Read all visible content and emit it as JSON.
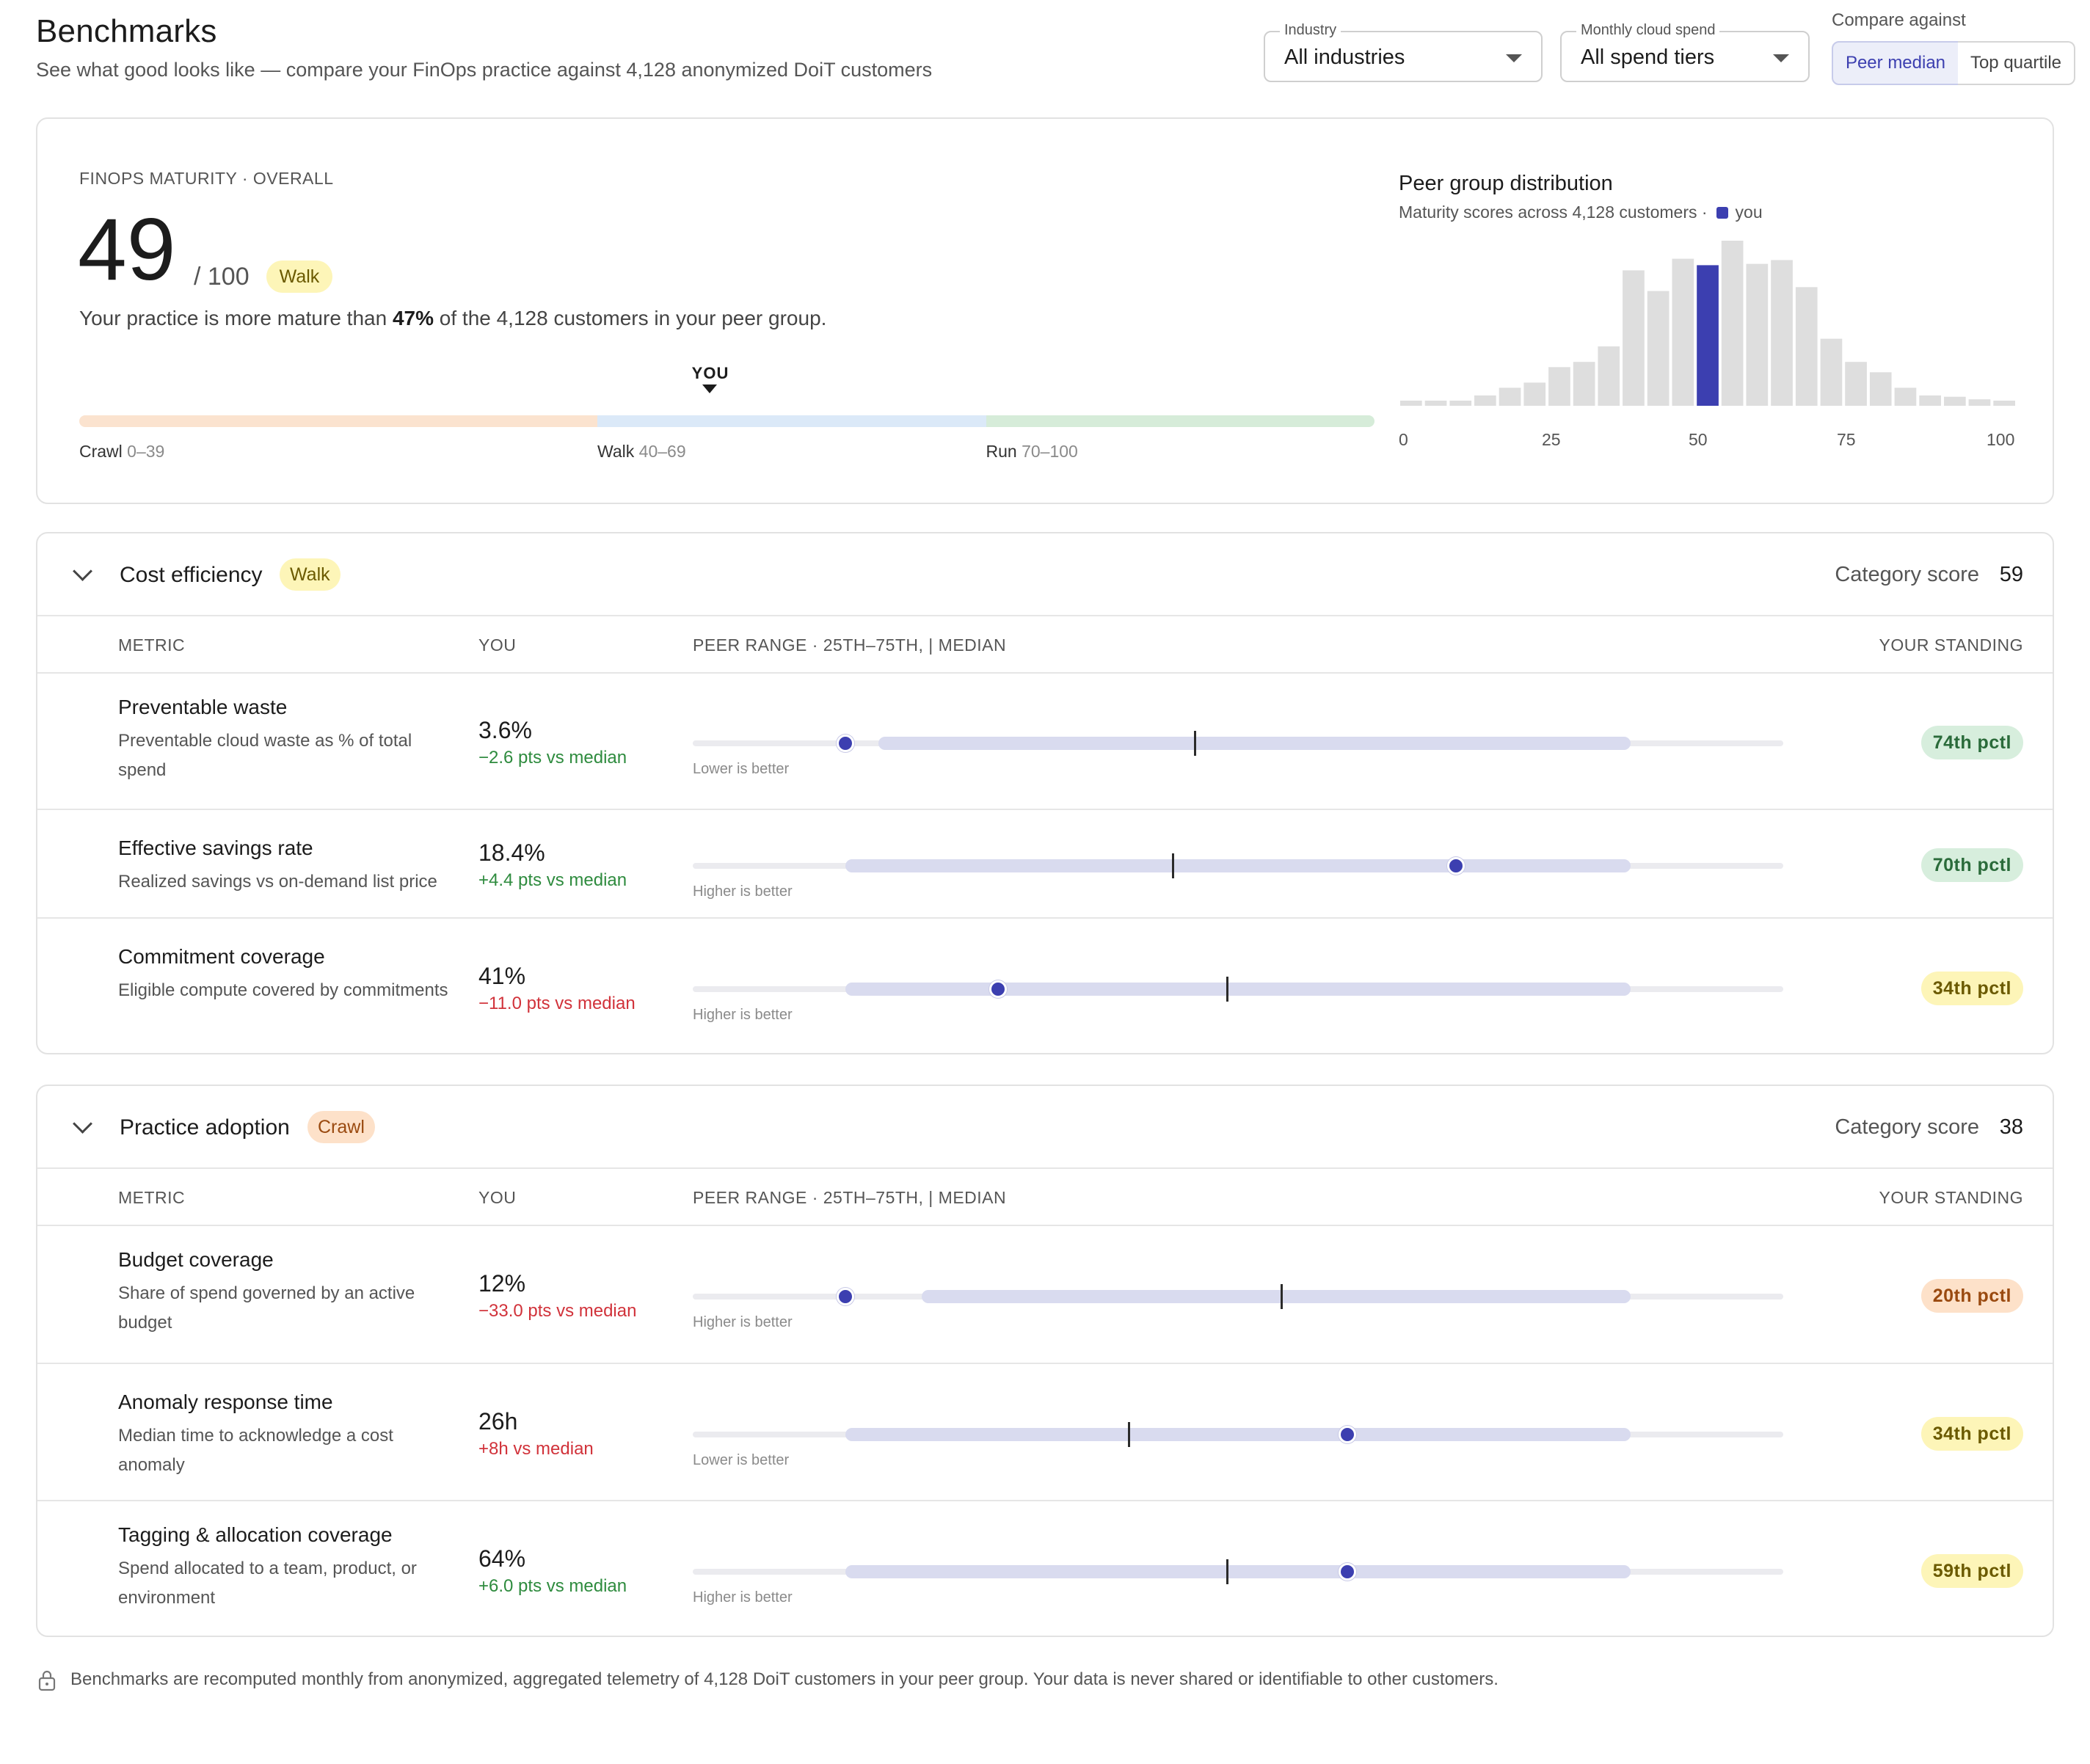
{
  "header": {
    "title": "Benchmarks",
    "subtitle": "See what good looks like — compare your FinOps practice against 4,128 anonymized DoiT customers"
  },
  "filters": {
    "industry_label": "Industry",
    "industry_value": "All industries",
    "spend_label": "Monthly cloud spend",
    "spend_value": "All spend tiers",
    "compare_label": "Compare against",
    "compare_options": [
      "Peer median",
      "Top quartile"
    ],
    "compare_selected": "Peer median"
  },
  "overall": {
    "eyebrow": "FINOPS MATURITY · OVERALL",
    "score": "49",
    "score_max": "/ 100",
    "stage": "Walk",
    "sentence_pre": "Your practice is more mature than ",
    "sentence_pct": "47%",
    "sentence_post": " of the 4,128 customers in your peer group.",
    "you_marker": "YOU",
    "you_value": 49,
    "stages": [
      {
        "name": "Crawl",
        "range": "0–39",
        "from": 0,
        "to": 40,
        "color": "#fbe3cf"
      },
      {
        "name": "Walk",
        "range": "40–69",
        "from": 40,
        "to": 70,
        "color": "#dbe9f8"
      },
      {
        "name": "Run",
        "range": "70–100",
        "from": 70,
        "to": 100,
        "color": "#d6ecd9"
      }
    ]
  },
  "distribution": {
    "title": "Peer group distribution",
    "subtitle": "Maturity scores across 4,128 customers ·",
    "legend_you": "you",
    "colors": {
      "bar": "#dedede",
      "you": "#3c3fb0"
    },
    "chart_data": {
      "type": "bar",
      "title": "Peer group distribution",
      "x": [
        0,
        4,
        8,
        12,
        16,
        20,
        24,
        28,
        32,
        36,
        40,
        44,
        48,
        52,
        56,
        60,
        64,
        68,
        72,
        76,
        80,
        84,
        88,
        92,
        96
      ],
      "values": [
        4,
        4,
        4,
        8,
        14,
        18,
        30,
        34,
        46,
        105,
        89,
        114,
        109,
        128,
        110,
        113,
        92,
        52,
        34,
        26,
        14,
        8,
        7,
        5,
        4
      ],
      "highlight_index": 12,
      "xticks": [
        "0",
        "25",
        "50",
        "75",
        "100"
      ],
      "xlim": [
        0,
        100
      ]
    }
  },
  "categories": [
    {
      "title": "Cost efficiency",
      "stage": "Walk",
      "score_label": "Category score",
      "score": "59",
      "col_metric": "METRIC",
      "col_you": "YOU",
      "col_range": "PEER RANGE · 25TH–75TH, | MEDIAN",
      "col_standing": "YOUR STANDING",
      "metrics": [
        {
          "name": "Preventable waste",
          "desc": "Preventable cloud waste as % of total spend",
          "value": "3.6%",
          "delta": "−2.6 pts vs median",
          "delta_tone": "good",
          "direction": "Lower is better",
          "p25": 17,
          "p75": 86,
          "median": 46,
          "you": 14,
          "standing": "74th pctl",
          "standing_tone": "green"
        },
        {
          "name": "Effective savings rate",
          "desc": "Realized savings vs on-demand list price",
          "value": "18.4%",
          "delta": "+4.4 pts vs median",
          "delta_tone": "good",
          "direction": "Higher is better",
          "p25": 14,
          "p75": 86,
          "median": 44,
          "you": 70,
          "standing": "70th pctl",
          "standing_tone": "green"
        },
        {
          "name": "Commitment coverage",
          "desc": "Eligible compute covered by commitments",
          "value": "41%",
          "delta": "−11.0 pts vs median",
          "delta_tone": "bad",
          "direction": "Higher is better",
          "p25": 14,
          "p75": 86,
          "median": 49,
          "you": 28,
          "standing": "34th pctl",
          "standing_tone": "yellow"
        }
      ]
    },
    {
      "title": "Practice adoption",
      "stage": "Crawl",
      "score_label": "Category score",
      "score": "38",
      "col_metric": "METRIC",
      "col_you": "YOU",
      "col_range": "PEER RANGE · 25TH–75TH, | MEDIAN",
      "col_standing": "YOUR STANDING",
      "metrics": [
        {
          "name": "Budget coverage",
          "desc": "Share of spend governed by an active budget",
          "value": "12%",
          "delta": "−33.0 pts vs median",
          "delta_tone": "bad",
          "direction": "Higher is better",
          "p25": 21,
          "p75": 86,
          "median": 54,
          "you": 14,
          "standing": "20th pctl",
          "standing_tone": "orange"
        },
        {
          "name": "Anomaly response time",
          "desc": "Median time to acknowledge a cost anomaly",
          "value": "26h",
          "delta": "+8h vs median",
          "delta_tone": "bad",
          "direction": "Lower is better",
          "p25": 14,
          "p75": 86,
          "median": 40,
          "you": 60,
          "standing": "34th pctl",
          "standing_tone": "yellow"
        },
        {
          "name": "Tagging & allocation coverage",
          "desc": "Spend allocated to a team, product, or environment",
          "value": "64%",
          "delta": "+6.0 pts vs median",
          "delta_tone": "good",
          "direction": "Higher is better",
          "p25": 14,
          "p75": 86,
          "median": 49,
          "you": 60,
          "standing": "59th pctl",
          "standing_tone": "yellow"
        }
      ]
    }
  ],
  "footer": {
    "text": "Benchmarks are recomputed monthly from anonymized, aggregated telemetry of 4,128 DoiT customers in your peer group. Your data is never shared or identifiable to other customers.",
    "icon": "lock-icon"
  }
}
